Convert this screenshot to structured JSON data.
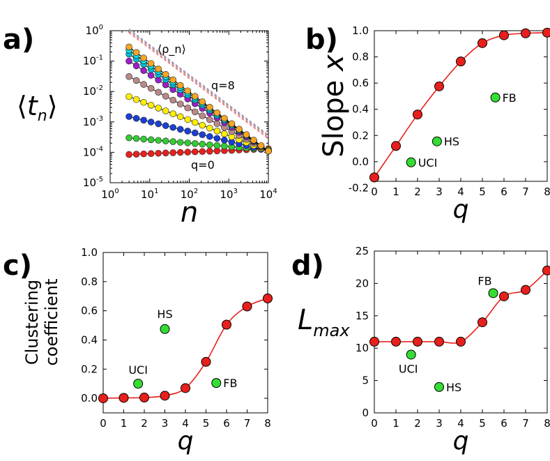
{
  "chart_data": [
    {
      "panel": "a)",
      "type": "scatter",
      "xlabel": "n",
      "ylabel": "⟨t_n⟩",
      "xscale": "log",
      "yscale": "log",
      "xlim": [
        1,
        10000
      ],
      "ylim": [
        1e-05,
        1
      ],
      "xticks": [
        {
          "base": "10",
          "exp": "0"
        },
        {
          "base": "10",
          "exp": "1"
        },
        {
          "base": "10",
          "exp": "2"
        },
        {
          "base": "10",
          "exp": "3"
        },
        {
          "base": "10",
          "exp": "4"
        }
      ],
      "yticks": [
        {
          "base": "10",
          "exp": "0"
        },
        {
          "base": "10",
          "exp": "-1"
        },
        {
          "base": "10",
          "exp": "-2"
        },
        {
          "base": "10",
          "exp": "-3"
        },
        {
          "base": "10",
          "exp": "-4"
        },
        {
          "base": "10",
          "exp": "-5"
        }
      ],
      "annotations": [
        {
          "text": "⟨ρ_n⟩",
          "color": "#000000"
        },
        {
          "text": "q=8",
          "color": "#f5a623"
        },
        {
          "text": "q=0",
          "color": "#e8201c"
        }
      ],
      "series": [
        {
          "q": 0,
          "color": "#e8201c",
          "start": 8.5e-05,
          "end": 0.00013
        },
        {
          "q": 1,
          "color": "#33cc33",
          "start": 0.0003,
          "end": 0.00012
        },
        {
          "q": 2,
          "color": "#1a3fd6",
          "start": 0.0015,
          "end": 0.00011
        },
        {
          "q": 3,
          "color": "#ffee00",
          "start": 0.0068,
          "end": 0.00011
        },
        {
          "q": 4,
          "color": "#bb8888",
          "start": 0.031,
          "end": 0.00011
        },
        {
          "q": 5,
          "color": "#9b1fc9",
          "start": 0.1,
          "end": 0.00011
        },
        {
          "q": 6,
          "color": "#00bcd4",
          "start": 0.17,
          "end": 0.00011
        },
        {
          "q": 7,
          "color": "#00e5ee",
          "start": 0.23,
          "end": 0.00011
        },
        {
          "q": 8,
          "color": "#f5a623",
          "start": 0.29,
          "end": 0.00011
        }
      ],
      "reference_lines": {
        "color_set": [
          "#ff6b6b",
          "#b08bd9",
          "#f5a623",
          "#4a90e2",
          "#d9a6c2"
        ],
        "start": 0.85,
        "end": 0.00028
      }
    },
    {
      "panel": "b)",
      "type": "scatter",
      "xlabel": "q",
      "ylabel": "Slope x",
      "ylabel_parts": [
        "Slope ",
        "x"
      ],
      "xlim": [
        0,
        8
      ],
      "ylim": [
        -0.15,
        1.0
      ],
      "xticks": [
        "0",
        "1",
        "2",
        "3",
        "4",
        "5",
        "6",
        "7",
        "8"
      ],
      "yticks": [
        "-0.2",
        "0.0",
        "0.2",
        "0.4",
        "0.6",
        "0.8",
        "1.0"
      ],
      "series": [
        {
          "name": "",
          "color": "#e8201c",
          "x": [
            0,
            1,
            2,
            3,
            4,
            5,
            6,
            7,
            8
          ],
          "y": [
            -0.12,
            0.12,
            0.36,
            0.575,
            0.765,
            0.905,
            0.965,
            0.98,
            0.985
          ]
        }
      ],
      "points": [
        {
          "label": "UCI",
          "x": 1.7,
          "y": -0.005
        },
        {
          "label": "HS",
          "x": 2.9,
          "y": 0.155
        },
        {
          "label": "FB",
          "x": 5.6,
          "y": 0.49
        }
      ]
    },
    {
      "panel": "c)",
      "type": "scatter",
      "xlabel": "q",
      "ylabel": "Clustering coefficient",
      "ylabel_lines": [
        "Clustering",
        "coefficient"
      ],
      "xlim": [
        0,
        8
      ],
      "ylim": [
        -0.1,
        1.0
      ],
      "xticks": [
        "0",
        "1",
        "2",
        "3",
        "4",
        "5",
        "6",
        "7",
        "8"
      ],
      "yticks": [
        "0.0",
        "0.2",
        "0.4",
        "0.6",
        "0.8",
        "1.0"
      ],
      "series": [
        {
          "name": "",
          "color": "#e8201c",
          "x": [
            0,
            1,
            2,
            3,
            4,
            5,
            6,
            7,
            8
          ],
          "y": [
            0.0,
            0.003,
            0.005,
            0.018,
            0.07,
            0.25,
            0.505,
            0.63,
            0.685
          ]
        }
      ],
      "points": [
        {
          "label": "UCI",
          "x": 1.7,
          "y": 0.1
        },
        {
          "label": "HS",
          "x": 3.0,
          "y": 0.475
        },
        {
          "label": "FB",
          "x": 5.5,
          "y": 0.105
        }
      ]
    },
    {
      "panel": "d)",
      "type": "scatter",
      "xlabel": "q",
      "ylabel": "L_max",
      "ylabel_parts": [
        "L",
        "max"
      ],
      "xlim": [
        0,
        8
      ],
      "ylim": [
        0,
        25
      ],
      "xticks": [
        "0",
        "1",
        "2",
        "3",
        "4",
        "5",
        "6",
        "7",
        "8"
      ],
      "yticks": [
        "0",
        "5",
        "10",
        "15",
        "20",
        "25"
      ],
      "series": [
        {
          "name": "",
          "color": "#e8201c",
          "x": [
            0,
            1,
            2,
            3,
            4,
            5,
            6,
            7,
            8
          ],
          "y": [
            11,
            11,
            11,
            11,
            11,
            14,
            18,
            19,
            22
          ]
        }
      ],
      "points": [
        {
          "label": "UCI",
          "x": 1.7,
          "y": 9
        },
        {
          "label": "HS",
          "x": 3.0,
          "y": 4
        },
        {
          "label": "FB",
          "x": 5.5,
          "y": 18.5
        }
      ]
    }
  ]
}
